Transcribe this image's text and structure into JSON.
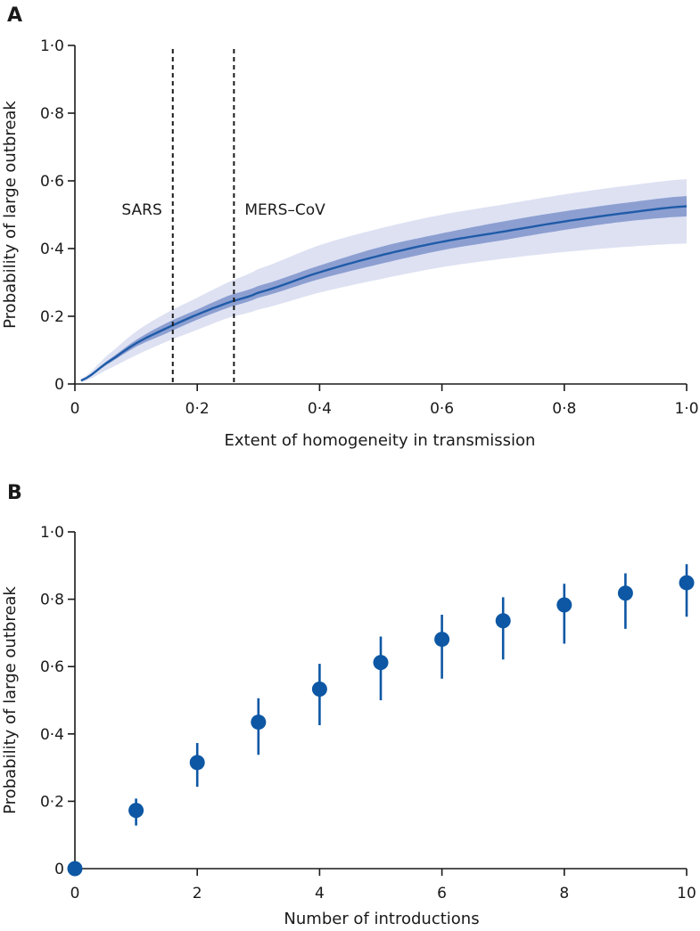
{
  "colors": {
    "line": "#1f5ba8",
    "band_outer": "#dde1f2",
    "band_inner": "#8d9fd1",
    "point": "#0d57a4"
  },
  "chart_data": [
    {
      "type": "line",
      "panel": "A",
      "xlabel": "Extent of homogeneity in transmission",
      "ylabel": "Probability of large outbreak",
      "xlim": [
        0,
        1
      ],
      "ylim": [
        0,
        1
      ],
      "xticks": [
        0,
        0.2,
        0.4,
        0.6,
        0.8,
        1.0
      ],
      "xtick_labels": [
        "0",
        "0·2",
        "0·4",
        "0·6",
        "0·8",
        "1·0"
      ],
      "yticks": [
        0,
        0.2,
        0.4,
        0.6,
        0.8,
        1.0
      ],
      "ytick_labels": [
        "0",
        "0·2",
        "0·4",
        "0·6",
        "0·8",
        "1·0"
      ],
      "x": [
        0.01,
        0.05,
        0.1,
        0.15,
        0.2,
        0.25,
        0.3,
        0.4,
        0.5,
        0.6,
        0.7,
        0.8,
        0.9,
        1.0
      ],
      "y": [
        0.01,
        0.06,
        0.12,
        0.165,
        0.205,
        0.24,
        0.27,
        0.33,
        0.38,
        0.42,
        0.45,
        0.48,
        0.505,
        0.525
      ],
      "inner_band_lower": [
        0.008,
        0.055,
        0.11,
        0.15,
        0.19,
        0.225,
        0.255,
        0.31,
        0.355,
        0.395,
        0.425,
        0.455,
        0.48,
        0.495
      ],
      "inner_band_upper": [
        0.012,
        0.065,
        0.13,
        0.18,
        0.22,
        0.26,
        0.29,
        0.35,
        0.405,
        0.445,
        0.48,
        0.51,
        0.535,
        0.555
      ],
      "outer_band_lower": [
        0.005,
        0.04,
        0.085,
        0.125,
        0.16,
        0.195,
        0.22,
        0.27,
        0.31,
        0.345,
        0.37,
        0.39,
        0.405,
        0.415
      ],
      "outer_band_upper": [
        0.015,
        0.08,
        0.155,
        0.21,
        0.255,
        0.3,
        0.34,
        0.41,
        0.46,
        0.5,
        0.53,
        0.56,
        0.585,
        0.605
      ],
      "vlines": [
        {
          "x": 0.16,
          "label": "SARS",
          "label_side": "left"
        },
        {
          "x": 0.26,
          "label": "MERS–CoV",
          "label_side": "right"
        }
      ]
    },
    {
      "type": "scatter",
      "panel": "B",
      "xlabel": "Number of introductions",
      "ylabel": "Probability of large outbreak",
      "xlim": [
        0,
        10
      ],
      "ylim": [
        0,
        1
      ],
      "xticks": [
        0,
        2,
        4,
        6,
        8,
        10
      ],
      "xtick_labels": [
        "0",
        "2",
        "4",
        "6",
        "8",
        "10"
      ],
      "yticks": [
        0,
        0.2,
        0.4,
        0.6,
        0.8,
        1.0
      ],
      "ytick_labels": [
        "0",
        "0·2",
        "0·4",
        "0·6",
        "0·8",
        "1·0"
      ],
      "x": [
        0,
        1,
        2,
        3,
        4,
        5,
        6,
        7,
        8,
        9,
        10
      ],
      "y": [
        0.0,
        0.173,
        0.315,
        0.435,
        0.533,
        0.612,
        0.681,
        0.736,
        0.783,
        0.818,
        0.849
      ],
      "err_lower": [
        0.0,
        0.128,
        0.243,
        0.338,
        0.426,
        0.5,
        0.564,
        0.621,
        0.668,
        0.712,
        0.748
      ],
      "err_upper": [
        0.0,
        0.208,
        0.373,
        0.506,
        0.608,
        0.689,
        0.754,
        0.806,
        0.846,
        0.877,
        0.904
      ]
    }
  ]
}
